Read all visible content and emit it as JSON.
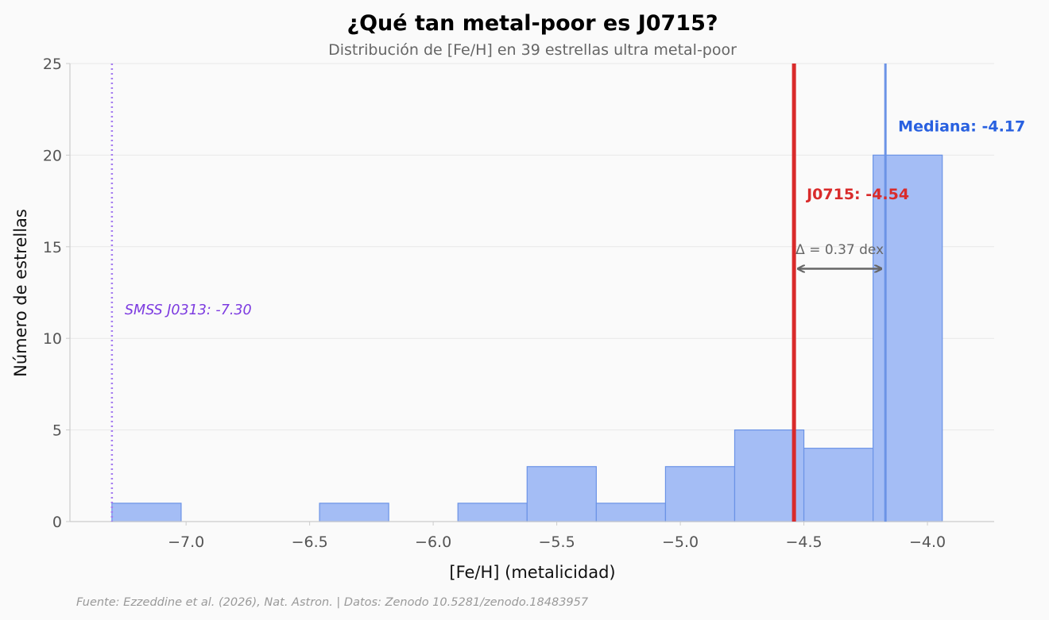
{
  "chart_data": {
    "type": "bar",
    "title": "¿Qué tan metal-poor es J0715?",
    "subtitle": "Distribución de [Fe/H] en 39 estrellas ultra metal-poor",
    "xlabel": "[Fe/H] (metalicidad)",
    "ylabel": "Número de estrellas",
    "xlim": [
      -7.47,
      -3.73
    ],
    "ylim": [
      0,
      25
    ],
    "x_ticks": [
      -7.0,
      -6.5,
      -6.0,
      -5.5,
      -5.0,
      -4.5,
      -4.0
    ],
    "x_tick_labels": [
      "−7.0",
      "−6.5",
      "−6.0",
      "−5.5",
      "−5.0",
      "−4.5",
      "−4.0"
    ],
    "y_ticks": [
      0,
      5,
      10,
      15,
      20,
      25
    ],
    "y_tick_labels": [
      "0",
      "5",
      "10",
      "15",
      "20",
      "25"
    ],
    "grid": true,
    "bin_edges": [
      -7.3,
      -7.02,
      -6.74,
      -6.46,
      -6.18,
      -5.9,
      -5.62,
      -5.34,
      -5.06,
      -4.78,
      -4.5,
      -4.22,
      -3.94
    ],
    "bins": [
      {
        "start": -7.3,
        "end": -7.02,
        "count": 1
      },
      {
        "start": -7.02,
        "end": -6.74,
        "count": 0
      },
      {
        "start": -6.74,
        "end": -6.46,
        "count": 0
      },
      {
        "start": -6.46,
        "end": -6.18,
        "count": 1
      },
      {
        "start": -6.18,
        "end": -5.9,
        "count": 0
      },
      {
        "start": -5.9,
        "end": -5.62,
        "count": 1
      },
      {
        "start": -5.62,
        "end": -5.34,
        "count": 3
      },
      {
        "start": -5.34,
        "end": -5.06,
        "count": 1
      },
      {
        "start": -5.06,
        "end": -4.78,
        "count": 3
      },
      {
        "start": -4.78,
        "end": -4.5,
        "count": 5
      },
      {
        "start": -4.5,
        "end": -4.22,
        "count": 4
      },
      {
        "start": -4.22,
        "end": -3.94,
        "count": 20
      }
    ],
    "bar_color": "#a4bdf5",
    "bar_edge_color": "#6b93e6",
    "reference_lines": [
      {
        "id": "j0715",
        "x": -4.54,
        "label": "J0715: -4.54",
        "color": "#d92b2b",
        "style": "solid"
      },
      {
        "id": "median",
        "x": -4.17,
        "label": "Mediana: -4.17",
        "color": "#2860e0",
        "line_color": "#6b93e6",
        "style": "solid"
      },
      {
        "id": "smss",
        "x": -7.3,
        "label": "SMSS J0313: -7.30",
        "color": "#7c3ae0",
        "line_color": "#a57cf0",
        "style": "dotted"
      }
    ],
    "annotation": {
      "text": "Δ = 0.37 dex",
      "from_x": -4.54,
      "to_x": -4.17,
      "y": 13.8,
      "text_y": 14.6,
      "color": "#666666"
    },
    "source": "Fuente: Ezzeddine et al. (2026), Nat. Astron. | Datos: Zenodo 10.5281/zenodo.18483957"
  }
}
